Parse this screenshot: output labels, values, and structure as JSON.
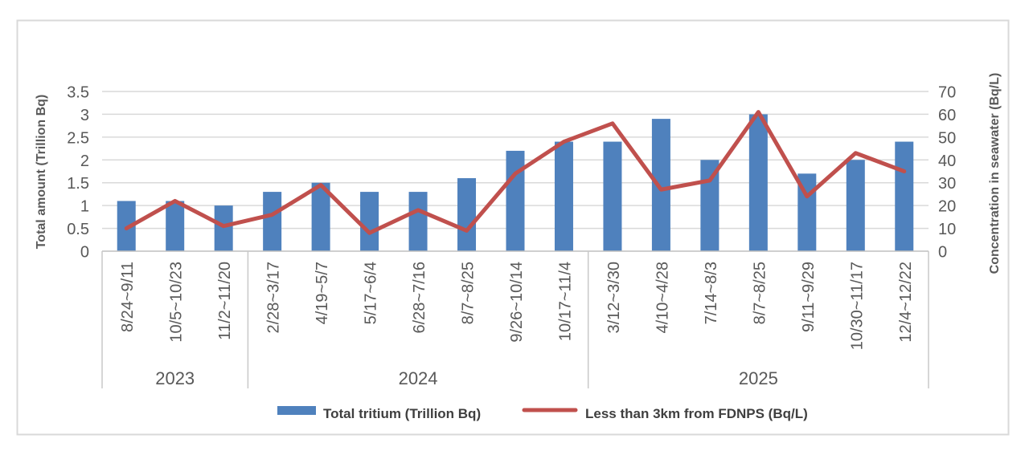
{
  "window": {
    "background": "#FFFFFF",
    "frame_border_color": "#D9D9D9"
  },
  "chart_data": {
    "type": "bar",
    "subtype": "combo-bar-line-dual-axis",
    "categories": [
      "8/24~9/11",
      "10/5~10/23",
      "11/2~11/20",
      "2/28~3/17",
      "4/19~5/7",
      "5/17~6/4",
      "6/28~7/16",
      "8/7~8/25",
      "9/26~10/14",
      "10/17~11/4",
      "3/12~3/30",
      "4/10~4/28",
      "7/14~8/3",
      "8/7~8/25",
      "9/11~9/29",
      "10/30~11/17",
      "12/4~12/22"
    ],
    "category_groups": [
      {
        "year": "2023",
        "count": 3
      },
      {
        "year": "2024",
        "count": 7
      },
      {
        "year": "2025",
        "count": 7
      }
    ],
    "series": [
      {
        "name": "Total tritium (Trillion Bq)",
        "chart": "bar",
        "axis": "left",
        "color": "#4F81BD",
        "values": [
          1.1,
          1.1,
          1.0,
          1.3,
          1.5,
          1.3,
          1.3,
          1.6,
          2.2,
          2.4,
          2.4,
          2.9,
          2.0,
          3.0,
          1.7,
          2.0,
          2.4
        ]
      },
      {
        "name": "Less than 3km from FDNPS (Bq/L)",
        "chart": "line",
        "axis": "right",
        "color": "#C0504D",
        "values": [
          10,
          22,
          11,
          16,
          29,
          8,
          18,
          9,
          34,
          48,
          56,
          27,
          31,
          61,
          24,
          43,
          35
        ]
      }
    ],
    "left_axis": {
      "title": "Total amount (Trillion Bq)",
      "min": 0,
      "max": 3.5,
      "step": 0.5,
      "tick_labels": [
        "0",
        "0.5",
        "1",
        "1.5",
        "2",
        "2.5",
        "3",
        "3.5"
      ]
    },
    "right_axis": {
      "title": "Concentration in seawater (Bq/L)",
      "min": 0,
      "max": 70,
      "step": 10,
      "tick_labels": [
        "0",
        "10",
        "20",
        "30",
        "40",
        "50",
        "60",
        "70"
      ]
    },
    "grid": "horizontal",
    "legend_position": "bottom",
    "colors": {
      "gridline": "#D9D9D9",
      "axis_line": "#BFBFBF",
      "group_separator": "#C9C9C9",
      "text": "#595959"
    }
  },
  "legend": {
    "items": [
      {
        "label": "Total tritium (Trillion Bq)",
        "marker": "bar-swatch",
        "color": "#4F81BD"
      },
      {
        "label": "Less than 3km from FDNPS (Bq/L)",
        "marker": "line-swatch",
        "color": "#C0504D"
      }
    ]
  }
}
